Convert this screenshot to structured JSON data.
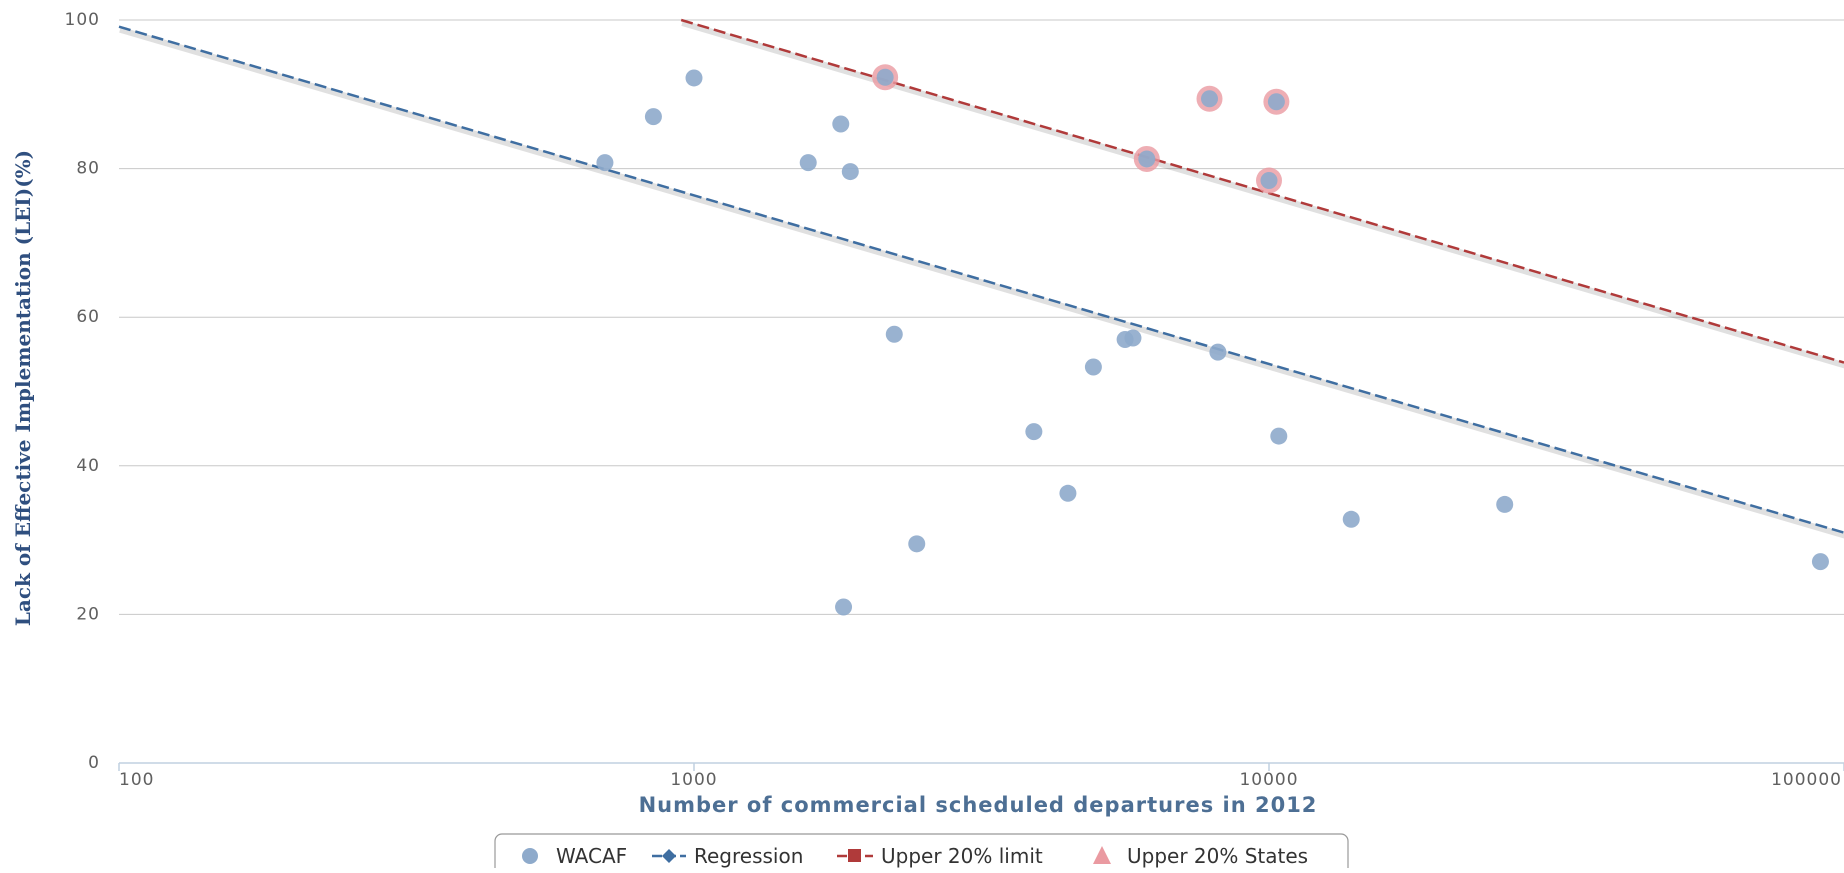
{
  "chart_data": {
    "type": "scatter",
    "xlabel": "Number of commercial scheduled departures in 2012",
    "ylabel": "Lack of Effective Implementation (LEI)(%)",
    "xscale": "log",
    "xlim": [
      100,
      100000
    ],
    "ylim": [
      0,
      100
    ],
    "grid": true,
    "legend_position": "bottom-center",
    "x_tick_labels": [
      "100",
      "1000",
      "10000",
      "100000"
    ],
    "y_tick_labels": [
      "0",
      "20",
      "40",
      "60",
      "80",
      "100"
    ],
    "colors": {
      "wacaf": "#8eaacb",
      "regression": "#3f6ea1",
      "upper_limit": "#b03a3a",
      "upper_states": "#ea9aa1",
      "grid": "#c8c8c8",
      "axis": "#c0d0e0"
    },
    "series": [
      {
        "name": "WACAF",
        "kind": "scatter",
        "marker": "circle",
        "points": [
          {
            "x": 700,
            "y": 80.8
          },
          {
            "x": 850,
            "y": 87
          },
          {
            "x": 1000,
            "y": 92.2
          },
          {
            "x": 1580,
            "y": 80.8
          },
          {
            "x": 1800,
            "y": 86
          },
          {
            "x": 1870,
            "y": 79.6
          },
          {
            "x": 2150,
            "y": 92.3
          },
          {
            "x": 2230,
            "y": 57.7
          },
          {
            "x": 2440,
            "y": 29.5
          },
          {
            "x": 1820,
            "y": 21
          },
          {
            "x": 3900,
            "y": 44.6
          },
          {
            "x": 4470,
            "y": 36.3
          },
          {
            "x": 4950,
            "y": 53.3
          },
          {
            "x": 5620,
            "y": 57
          },
          {
            "x": 5800,
            "y": 57.2
          },
          {
            "x": 6130,
            "y": 81.3
          },
          {
            "x": 7880,
            "y": 89.4
          },
          {
            "x": 8150,
            "y": 55.3
          },
          {
            "x": 10000,
            "y": 78.4
          },
          {
            "x": 10300,
            "y": 89
          },
          {
            "x": 10400,
            "y": 44
          },
          {
            "x": 13900,
            "y": 32.8
          },
          {
            "x": 25700,
            "y": 34.8
          },
          {
            "x": 91000,
            "y": 27.1
          }
        ]
      },
      {
        "name": "Regression",
        "kind": "line",
        "dash": "dashed",
        "points": [
          {
            "x": 100,
            "y": 99.1
          },
          {
            "x": 100000,
            "y": 31
          }
        ]
      },
      {
        "name": "Upper 20% limit",
        "kind": "line",
        "dash": "dashed",
        "points": [
          {
            "x": 950,
            "y": 100
          },
          {
            "x": 100000,
            "y": 53.9
          }
        ]
      },
      {
        "name": "Upper 20% States",
        "kind": "scatter",
        "marker": "circle-halo",
        "points": [
          {
            "x": 2150,
            "y": 92.3
          },
          {
            "x": 6130,
            "y": 81.3
          },
          {
            "x": 7880,
            "y": 89.4
          },
          {
            "x": 10000,
            "y": 78.4
          },
          {
            "x": 10300,
            "y": 89
          }
        ]
      }
    ],
    "legend": [
      {
        "label": "WACAF",
        "symbol": "circle"
      },
      {
        "label": "Regression",
        "symbol": "line-diamond"
      },
      {
        "label": "Upper 20% limit",
        "symbol": "line-square"
      },
      {
        "label": "Upper 20% States",
        "symbol": "triangle"
      }
    ]
  }
}
